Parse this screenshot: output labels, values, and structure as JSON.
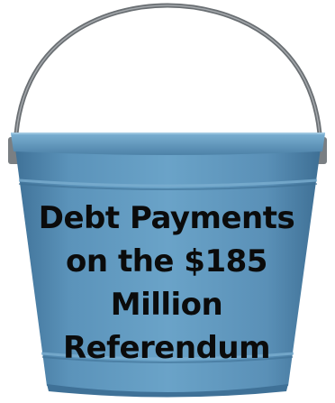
{
  "image": {
    "subject": "bucket",
    "bucket_color": "#5a8fb5",
    "handle_color": "#6f7478",
    "caption_lines": [
      "Debt Payments",
      "on the $185",
      "Million",
      "Referendum"
    ]
  }
}
